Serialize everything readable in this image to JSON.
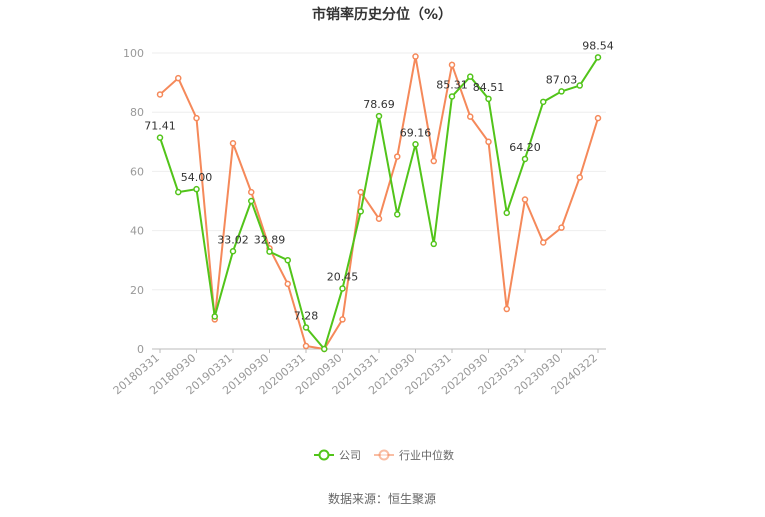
{
  "chart_data": {
    "type": "line",
    "title": "市销率历史分位（%）",
    "source": "数据来源：恒生聚源",
    "ylim": [
      0,
      100
    ],
    "yticks": [
      0,
      20,
      40,
      60,
      80,
      100
    ],
    "grid": true,
    "legend_position": "bottom",
    "xticks": [
      "20180331",
      "20180930",
      "20190331",
      "20190930",
      "20200331",
      "20200930",
      "20210331",
      "20210930",
      "20220331",
      "20220930",
      "20230331",
      "20230930",
      "20240322"
    ],
    "series": [
      {
        "name": "公司",
        "color": "#52c41a",
        "values": [
          71.41,
          53.0,
          54.0,
          11.0,
          33.02,
          50.0,
          32.89,
          30.0,
          7.28,
          0.0,
          20.45,
          46.5,
          78.69,
          45.5,
          69.16,
          35.5,
          85.31,
          92.0,
          84.51,
          46.0,
          64.2,
          83.5,
          87.03,
          89.0,
          98.54
        ],
        "labels": {
          "0": "71.41",
          "2": "54.00",
          "4": "33.02",
          "6": "32.89",
          "8": "7.28",
          "10": "20.45",
          "12": "78.69",
          "14": "69.16",
          "16": "85.31",
          "18": "84.51",
          "20": "64.20",
          "22": "87.03",
          "24": "98.54"
        }
      },
      {
        "name": "行业中位数",
        "color": "#f5895a",
        "values": [
          86.0,
          91.5,
          78.0,
          10.0,
          69.5,
          53.0,
          34.0,
          22.0,
          1.0,
          0.0,
          10.0,
          53.0,
          44.0,
          65.0,
          98.8,
          63.5,
          96.0,
          78.5,
          70.0,
          13.5,
          50.5,
          36.0,
          41.0,
          58.0,
          78.0
        ],
        "labels": {}
      }
    ]
  }
}
